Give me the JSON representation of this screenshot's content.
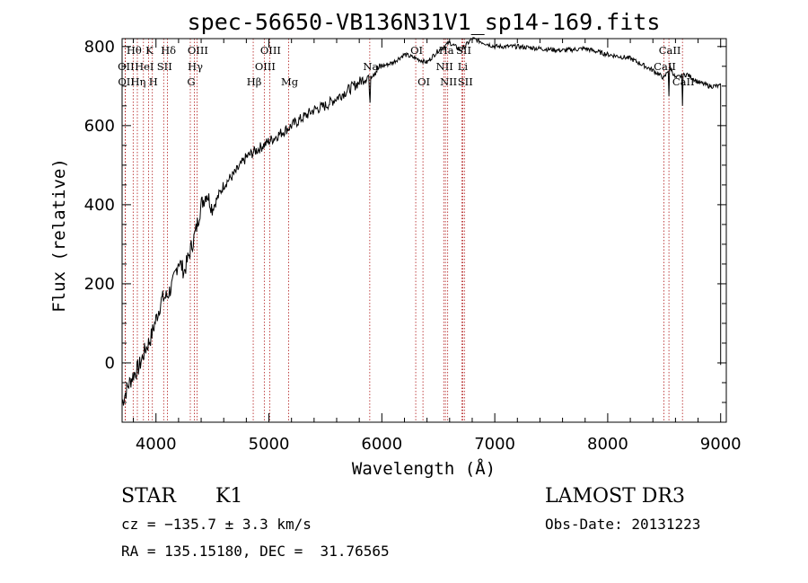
{
  "chart_data": {
    "type": "line",
    "title": "spec-56650-VB136N31V1_sp14-169.fits",
    "xlabel": "Wavelength (Å)",
    "ylabel": "Flux (relative)",
    "xlim": [
      3700,
      9050
    ],
    "ylim": [
      -150,
      820
    ],
    "xticks": [
      4000,
      5000,
      6000,
      7000,
      8000,
      9000
    ],
    "yticks": [
      0,
      200,
      400,
      600,
      800
    ],
    "series": [
      {
        "name": "flux",
        "x": [
          3700,
          3750,
          3800,
          3850,
          3900,
          3950,
          4000,
          4050,
          4100,
          4150,
          4200,
          4250,
          4300,
          4350,
          4400,
          4450,
          4500,
          4600,
          4700,
          4800,
          4900,
          5000,
          5100,
          5200,
          5300,
          5400,
          5500,
          5600,
          5700,
          5800,
          5900,
          6000,
          6100,
          6200,
          6300,
          6400,
          6500,
          6600,
          6700,
          6800,
          6900,
          7000,
          7200,
          7400,
          7600,
          7800,
          8000,
          8200,
          8400,
          8500,
          8550,
          8600,
          8700,
          8800,
          8900,
          9000
        ],
        "values": [
          -100,
          -60,
          -30,
          -10,
          30,
          60,
          110,
          160,
          170,
          200,
          260,
          230,
          280,
          330,
          400,
          430,
          390,
          450,
          480,
          520,
          540,
          560,
          580,
          600,
          620,
          640,
          650,
          670,
          690,
          710,
          730,
          750,
          760,
          780,
          770,
          760,
          790,
          810,
          790,
          820,
          810,
          800,
          800,
          795,
          790,
          795,
          780,
          770,
          740,
          720,
          750,
          720,
          730,
          710,
          700,
          700
        ]
      }
    ],
    "lines_top": [
      {
        "label": "Hθ",
        "w": 3798
      },
      {
        "label": "K",
        "w": 3934
      },
      {
        "label": "Hδ",
        "w": 4102
      },
      {
        "label": "OIII",
        "w": 4363
      },
      {
        "label": "OIII",
        "w": 5007
      },
      {
        "label": "OI",
        "w": 6300
      },
      {
        "label": "Ha",
        "w": 6563
      },
      {
        "label": "SII",
        "w": 6717
      },
      {
        "label": "CaII",
        "w": 8542
      }
    ],
    "lines_mid": [
      {
        "label": "OII",
        "w": 3727
      },
      {
        "label": "HeI",
        "w": 3889
      },
      {
        "label": "SII",
        "w": 4068
      },
      {
        "label": "Hγ",
        "w": 4340
      },
      {
        "label": "OIII",
        "w": 4959
      },
      {
        "label": "Na",
        "w": 5893
      },
      {
        "label": "NII",
        "w": 6548
      },
      {
        "label": "Li",
        "w": 6708
      },
      {
        "label": "CaII",
        "w": 8498
      }
    ],
    "lines_low": [
      {
        "label": "OII",
        "w": 3729
      },
      {
        "label": "Hη",
        "w": 3835
      },
      {
        "label": "H",
        "w": 3968
      },
      {
        "label": "G",
        "w": 4304
      },
      {
        "label": "Hβ",
        "w": 4861
      },
      {
        "label": "Mg",
        "w": 5175
      },
      {
        "label": "OI",
        "w": 6364
      },
      {
        "label": "NII",
        "w": 6583
      },
      {
        "label": "SII",
        "w": 6731
      },
      {
        "label": "CaII",
        "w": 8662
      }
    ]
  },
  "info": {
    "class": "STAR",
    "subclass": "K1",
    "survey": "LAMOST DR3",
    "cz": "cz = −135.7 ± 3.3 km/s",
    "obs_date": "Obs-Date: 20131223",
    "coords": "RA = 135.15180, DEC =  31.76565"
  },
  "colors": {
    "line": "#000000",
    "marker": "#b01818"
  }
}
